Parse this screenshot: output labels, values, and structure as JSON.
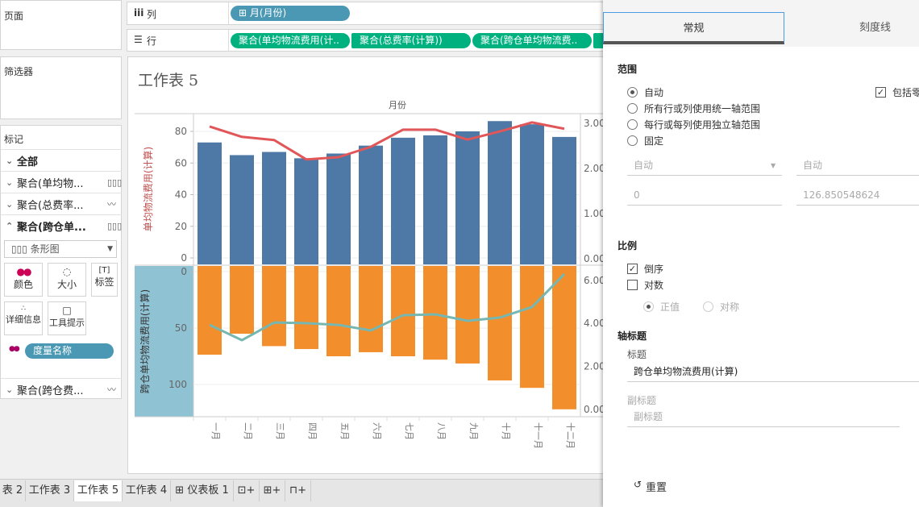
{
  "shelves": {
    "pages": "页面",
    "filters": "筛选器",
    "columns_label": "列",
    "rows_label": "行",
    "columns_pill": "月(月份)",
    "row_pills": [
      "聚合(单均物流费用(计..",
      "聚合(总费率(计算))",
      "聚合(跨仓单均物流费.."
    ]
  },
  "marks": {
    "title": "标记",
    "items": [
      {
        "label": "全部",
        "chev": "⌄",
        "icon": ""
      },
      {
        "label": "聚合(单均物...",
        "chev": "⌄",
        "icon": "bar-icon"
      },
      {
        "label": "聚合(总费率...",
        "chev": "⌄",
        "icon": "line-icon"
      },
      {
        "label": "聚合(跨仓单...",
        "chev": "⌃",
        "icon": "bar-icon"
      }
    ],
    "mark_type": "条形图",
    "buttons": [
      "颜色",
      "大小",
      "标签",
      "详细信息",
      "工具提示"
    ],
    "color_pill": "度量名称",
    "last_item": "聚合(跨仓费..."
  },
  "sheet": {
    "title": "工作表 5",
    "column_header": "月份"
  },
  "tabs": [
    "表 2",
    "工作表 3",
    "工作表 5",
    "工作表 4",
    "仪表板 1"
  ],
  "active_tab": 2,
  "panel": {
    "tabs": [
      "常规",
      "刻度线"
    ],
    "range_title": "范围",
    "range_options": [
      "自动",
      "所有行或列使用统一轴范围",
      "每行或每列使用独立轴范围",
      "固定"
    ],
    "range_selected": 0,
    "include_zero": "包括零",
    "start_select": "自动",
    "end_select": "自动",
    "start_value": "0",
    "end_value": "126.850548624",
    "scale_title": "比例",
    "reversed": "倒序",
    "log": "对数",
    "positive": "正值",
    "symmetric": "对称",
    "axis_title_section": "轴标题",
    "title_label": "标题",
    "title_value": "跨仓单均物流费用(计算)",
    "subtitle_label": "副标题",
    "subtitle_placeholder": "副标题",
    "reset": "重置"
  },
  "colors": {
    "blue_bar": "#4e79a7",
    "orange_bar": "#f28e2b",
    "red_line": "#e15759",
    "teal_line": "#76b7b2",
    "pill_blue": "#4a98b4",
    "pill_green": "#00b180"
  },
  "chart_data": [
    {
      "type": "bar+line",
      "categories": [
        "一月",
        "二月",
        "三月",
        "四月",
        "五月",
        "六月",
        "七月",
        "八月",
        "九月",
        "十月",
        "十一月",
        "十二月"
      ],
      "series": [
        {
          "name": "单均物流费用(计算)",
          "type": "bar",
          "axis": "left",
          "values": [
            73,
            65,
            67,
            63,
            66,
            71,
            76,
            77.5,
            80,
            86.5,
            84.5,
            76.5
          ]
        },
        {
          "name": "总费率(计算)",
          "type": "line",
          "axis": "right",
          "values": [
            2.93,
            2.7,
            2.63,
            2.2,
            2.25,
            2.48,
            2.86,
            2.86,
            2.64,
            2.82,
            3.02,
            2.88
          ]
        }
      ],
      "ylabel": "单均物流费用(计算)",
      "left_ticks": [
        "0",
        "20",
        "40",
        "60",
        "80"
      ],
      "right_ticks": [
        "0.00",
        "1.00",
        "2.00",
        "3.00"
      ],
      "ylim": [
        0,
        91
      ],
      "y2lim": [
        0,
        3.2
      ]
    },
    {
      "type": "bar+line",
      "reversed": true,
      "series": [
        {
          "name": "跨仓单均物流费用(计算)",
          "type": "bar",
          "axis": "left",
          "values": [
            73.6,
            55,
            66,
            68.6,
            75,
            71.4,
            75,
            78,
            81.4,
            96.4,
            103,
            122
          ]
        },
        {
          "name": "跨仓费率",
          "type": "line",
          "axis": "right",
          "values": [
            3.93,
            3.22,
            4.04,
            4.01,
            3.93,
            3.67,
            4.38,
            4.42,
            4.12,
            4.27,
            4.76,
            6.29
          ]
        }
      ],
      "ylabel": "跨仓单均物流费用(计算)",
      "left_ticks": [
        "0",
        "50",
        "100"
      ],
      "right_ticks": [
        "0.00",
        "2.00",
        "4.00",
        "6.00"
      ],
      "ylim": [
        0,
        126.85
      ],
      "y2lim": [
        -0.34,
        6.67
      ]
    }
  ]
}
